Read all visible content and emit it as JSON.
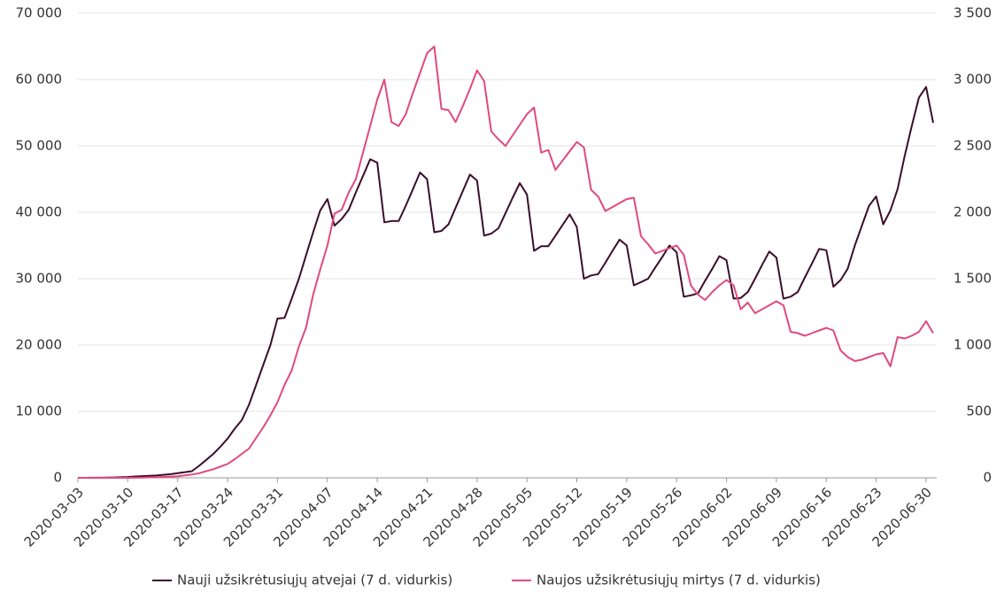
{
  "chart_data": {
    "type": "line",
    "x": [
      "2020-03-03",
      "2020-03-04",
      "2020-03-05",
      "2020-03-06",
      "2020-03-07",
      "2020-03-08",
      "2020-03-09",
      "2020-03-10",
      "2020-03-11",
      "2020-03-12",
      "2020-03-13",
      "2020-03-14",
      "2020-03-15",
      "2020-03-16",
      "2020-03-17",
      "2020-03-18",
      "2020-03-19",
      "2020-03-20",
      "2020-03-21",
      "2020-03-22",
      "2020-03-23",
      "2020-03-24",
      "2020-03-25",
      "2020-03-26",
      "2020-03-27",
      "2020-03-28",
      "2020-03-29",
      "2020-03-30",
      "2020-03-31",
      "2020-04-01",
      "2020-04-02",
      "2020-04-03",
      "2020-04-04",
      "2020-04-05",
      "2020-04-06",
      "2020-04-07",
      "2020-04-08",
      "2020-04-09",
      "2020-04-10",
      "2020-04-11",
      "2020-04-12",
      "2020-04-13",
      "2020-04-14",
      "2020-04-15",
      "2020-04-16",
      "2020-04-17",
      "2020-04-18",
      "2020-04-19",
      "2020-04-20",
      "2020-04-21",
      "2020-04-22",
      "2020-04-23",
      "2020-04-24",
      "2020-04-25",
      "2020-04-26",
      "2020-04-27",
      "2020-04-28",
      "2020-04-29",
      "2020-04-30",
      "2020-05-01",
      "2020-05-02",
      "2020-05-03",
      "2020-05-04",
      "2020-05-05",
      "2020-05-06",
      "2020-05-07",
      "2020-05-08",
      "2020-05-09",
      "2020-05-10",
      "2020-05-11",
      "2020-05-12",
      "2020-05-13",
      "2020-05-14",
      "2020-05-15",
      "2020-05-16",
      "2020-05-17",
      "2020-05-18",
      "2020-05-19",
      "2020-05-20",
      "2020-05-21",
      "2020-05-22",
      "2020-05-23",
      "2020-05-24",
      "2020-05-25",
      "2020-05-26",
      "2020-05-27",
      "2020-05-28",
      "2020-05-29",
      "2020-05-30",
      "2020-05-31",
      "2020-06-01",
      "2020-06-02",
      "2020-06-03",
      "2020-06-04",
      "2020-06-05",
      "2020-06-06",
      "2020-06-07",
      "2020-06-08",
      "2020-06-09",
      "2020-06-10",
      "2020-06-11",
      "2020-06-12",
      "2020-06-13",
      "2020-06-14",
      "2020-06-15",
      "2020-06-16",
      "2020-06-17",
      "2020-06-18",
      "2020-06-19",
      "2020-06-20",
      "2020-06-21",
      "2020-06-22",
      "2020-06-23",
      "2020-06-24",
      "2020-06-25",
      "2020-06-26",
      "2020-06-27",
      "2020-06-28",
      "2020-06-29",
      "2020-06-30",
      "2020-07-01"
    ],
    "xlim": [
      "2020-03-03",
      "2020-07-01"
    ],
    "xticks": [
      "2020-03-03",
      "2020-03-10",
      "2020-03-17",
      "2020-03-24",
      "2020-03-31",
      "2020-04-07",
      "2020-04-14",
      "2020-04-21",
      "2020-04-28",
      "2020-05-05",
      "2020-05-12",
      "2020-05-19",
      "2020-05-26",
      "2020-06-02",
      "2020-06-09",
      "2020-06-16",
      "2020-06-23",
      "2020-06-30"
    ],
    "ylim": [
      0,
      70000
    ],
    "yticks": [
      0,
      {
        "value": 10000,
        "label": "10 000"
      },
      {
        "value": 20000,
        "label": "20 000"
      },
      {
        "value": 30000,
        "label": "30 000"
      },
      {
        "value": 40000,
        "label": "40 000"
      },
      {
        "value": 50000,
        "label": "50 000"
      },
      {
        "value": 60000,
        "label": "60 000"
      },
      {
        "value": 70000,
        "label": "70 000"
      }
    ],
    "y2lim": [
      0,
      3500
    ],
    "y2ticks": [
      0,
      500,
      {
        "value": 1000,
        "label": "1 000"
      },
      {
        "value": 1500,
        "label": "1 500"
      },
      {
        "value": 2000,
        "label": "2 000"
      },
      {
        "value": 2500,
        "label": "2 500"
      },
      {
        "value": 3000,
        "label": "3 000"
      },
      {
        "value": 3500,
        "label": "3 500"
      }
    ],
    "grid": true,
    "legend": "bottom",
    "series": [
      {
        "name": "Nauji užsikrėtusiųjų atvejai (7 d. vidurkis)",
        "color": "#3b0d2c",
        "values": [
          0,
          0,
          10,
          20,
          30,
          50,
          80,
          120,
          200,
          250,
          300,
          350,
          450,
          550,
          700,
          850,
          1000,
          1800,
          2700,
          3600,
          4700,
          5900,
          7400,
          8700,
          11000,
          14000,
          17000,
          20000,
          24000,
          24100,
          27000,
          30000,
          33500,
          37000,
          40300,
          42000,
          38000,
          39000,
          40400,
          43000,
          45500,
          48000,
          47500,
          38500,
          38700,
          38700,
          41000,
          43500,
          46000,
          45000,
          37000,
          37200,
          38200,
          40700,
          43200,
          45700,
          44800,
          36500,
          36800,
          37600,
          39900,
          42200,
          44400,
          42700,
          34200,
          34900,
          34900,
          36500,
          38100,
          39700,
          37800,
          30000,
          30500,
          30700,
          32400,
          34200,
          35900,
          35000,
          29000,
          29500,
          30000,
          31700,
          33300,
          35000,
          34000,
          27300,
          27500,
          27800,
          29700,
          31500,
          33400,
          32800,
          27000,
          27100,
          28000,
          30000,
          32100,
          34100,
          33200,
          27000,
          27300,
          28000,
          30200,
          32300,
          34500,
          34300,
          28800,
          29800,
          31500,
          35000,
          38000,
          41000,
          42400,
          38200,
          40300,
          43500,
          48500,
          53000,
          57300,
          58900,
          53500
        ]
      },
      {
        "name": "Naujos užsikrėtusiųjų mirtys (7 d. vidurkis)",
        "color": "#e0497f",
        "axis": "y2",
        "values": [
          0,
          0,
          0,
          0,
          0,
          0,
          0,
          0,
          1,
          2,
          3,
          5,
          7,
          9,
          12,
          18,
          25,
          35,
          50,
          65,
          85,
          105,
          140,
          180,
          220,
          300,
          380,
          470,
          570,
          700,
          810,
          990,
          1130,
          1380,
          1570,
          1750,
          1990,
          2020,
          2150,
          2250,
          2450,
          2650,
          2850,
          3000,
          2680,
          2650,
          2740,
          2900,
          3050,
          3200,
          3250,
          2780,
          2770,
          2680,
          2800,
          2930,
          3070,
          2990,
          2610,
          2550,
          2500,
          2580,
          2660,
          2740,
          2790,
          2450,
          2470,
          2320,
          2390,
          2460,
          2530,
          2490,
          2170,
          2120,
          2010,
          2040,
          2070,
          2100,
          2110,
          1820,
          1760,
          1690,
          1710,
          1730,
          1750,
          1680,
          1450,
          1380,
          1340,
          1400,
          1450,
          1490,
          1450,
          1270,
          1320,
          1240,
          1270,
          1300,
          1330,
          1300,
          1100,
          1090,
          1070,
          1090,
          1110,
          1130,
          1110,
          960,
          910,
          880,
          890,
          910,
          930,
          940,
          840,
          1060,
          1050,
          1070,
          1100,
          1180,
          1090
        ]
      }
    ]
  }
}
